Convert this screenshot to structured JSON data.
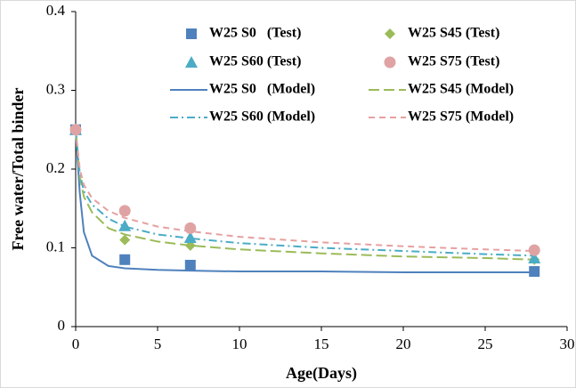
{
  "chart_data": {
    "type": "line",
    "xlabel": "Age(Days)",
    "ylabel": "Free water/Total binder",
    "xlim": [
      0,
      30
    ],
    "xticks": [
      0,
      5,
      10,
      15,
      20,
      25,
      30
    ],
    "ylim": [
      0,
      0.4
    ],
    "yticks": [
      0,
      0.1,
      0.2,
      0.3,
      0.4
    ],
    "grid": false,
    "legend": "top",
    "series": [
      {
        "name": "W25 S0   (Test)",
        "color": "#4f81bd",
        "marker": "square",
        "x": [
          0,
          3,
          7,
          28
        ],
        "values": [
          0.25,
          0.085,
          0.078,
          0.07
        ]
      },
      {
        "name": "W25 S45 (Test)",
        "color": "#9bbb59",
        "marker": "diamond",
        "x": [
          0,
          3,
          7,
          28
        ],
        "values": [
          0.25,
          0.11,
          0.103,
          0.085
        ]
      },
      {
        "name": "W25 S60 (Test)",
        "color": "#4bacc6",
        "marker": "triangle",
        "x": [
          0,
          3,
          7,
          28
        ],
        "values": [
          0.25,
          0.128,
          0.113,
          0.087
        ]
      },
      {
        "name": "W25 S75 (Test)",
        "color": "#e0a3a3",
        "marker": "circle",
        "x": [
          0,
          3,
          7,
          28
        ],
        "values": [
          0.25,
          0.147,
          0.125,
          0.097
        ]
      },
      {
        "name": "W25 S0   (Model)",
        "color": "#4f81bd",
        "dash": "solid",
        "x": [
          0,
          0.25,
          0.5,
          1,
          2,
          3,
          5,
          7,
          10,
          15,
          20,
          25,
          28
        ],
        "values": [
          0.25,
          0.17,
          0.12,
          0.09,
          0.077,
          0.074,
          0.072,
          0.071,
          0.07,
          0.07,
          0.069,
          0.069,
          0.069
        ]
      },
      {
        "name": "W25 S45 (Model)",
        "color": "#9bbb59",
        "dash": "longdash",
        "x": [
          0,
          0.25,
          0.5,
          1,
          2,
          3,
          5,
          7,
          10,
          15,
          20,
          25,
          28
        ],
        "values": [
          0.25,
          0.19,
          0.165,
          0.145,
          0.125,
          0.117,
          0.108,
          0.103,
          0.098,
          0.093,
          0.089,
          0.087,
          0.085
        ]
      },
      {
        "name": "W25 S60 (Model)",
        "color": "#4bacc6",
        "dash": "dashdot",
        "x": [
          0,
          0.25,
          0.5,
          1,
          2,
          3,
          5,
          7,
          10,
          15,
          20,
          25,
          28
        ],
        "values": [
          0.25,
          0.195,
          0.172,
          0.155,
          0.137,
          0.127,
          0.117,
          0.112,
          0.106,
          0.1,
          0.096,
          0.092,
          0.09
        ]
      },
      {
        "name": "W25 S75 (Model)",
        "color": "#e6a0a0",
        "dash": "dash",
        "x": [
          0,
          0.25,
          0.5,
          1,
          2,
          3,
          5,
          7,
          10,
          15,
          20,
          25,
          28
        ],
        "values": [
          0.25,
          0.2,
          0.18,
          0.163,
          0.147,
          0.138,
          0.127,
          0.121,
          0.114,
          0.107,
          0.102,
          0.098,
          0.096
        ]
      }
    ]
  }
}
